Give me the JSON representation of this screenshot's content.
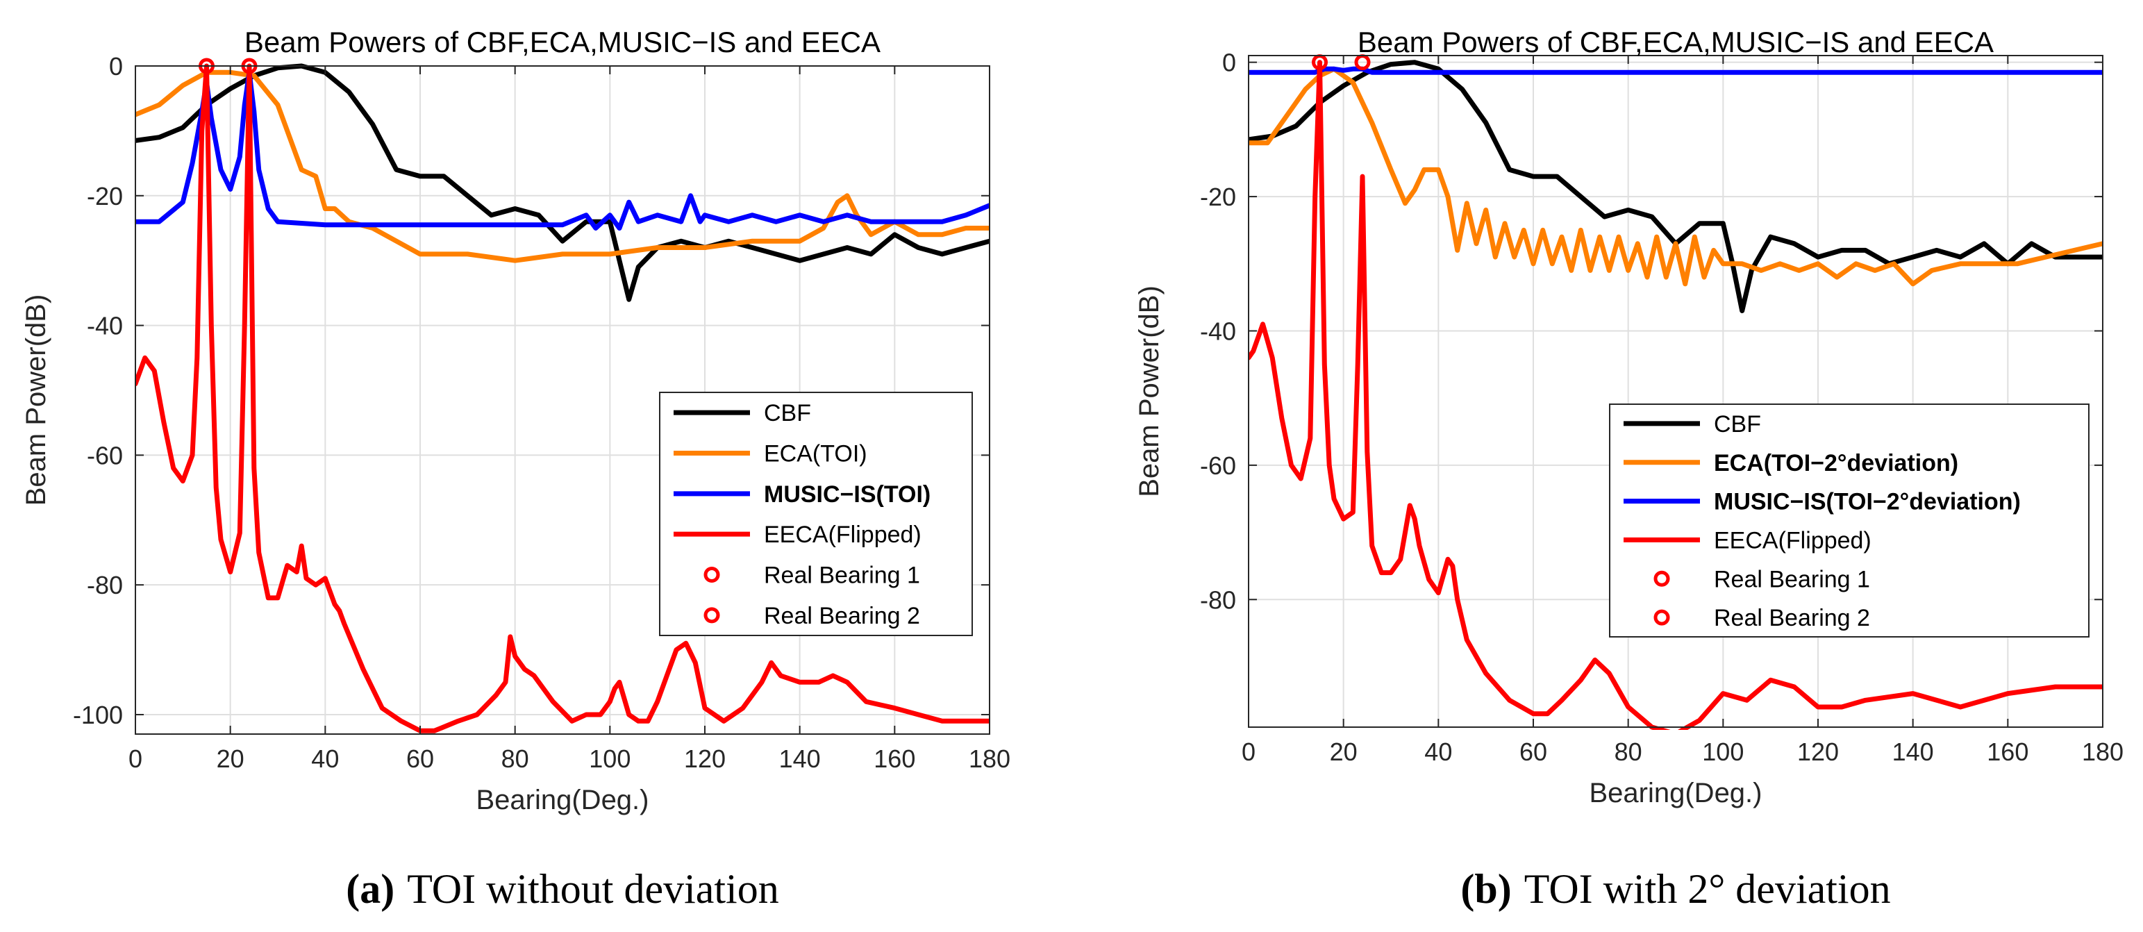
{
  "chart_data": [
    {
      "id": "a",
      "type": "line",
      "title": "Beam Powers of CBF,ECA,MUSIC−IS and EECA",
      "xlabel": "Bearing(Deg.)",
      "ylabel": "Beam Power(dB)",
      "xlim": [
        0,
        180
      ],
      "ylim": [
        -103,
        0
      ],
      "xticks": [
        0,
        20,
        40,
        60,
        80,
        100,
        120,
        140,
        160,
        180
      ],
      "yticks": [
        0,
        -20,
        -40,
        -60,
        -80,
        -100
      ],
      "grid": true,
      "legend_position": "lower-right",
      "caption": {
        "label": "(a)",
        "text": "TOI without deviation"
      },
      "series": [
        {
          "name": "CBF",
          "color": "#000000",
          "bold": false,
          "x": [
            0,
            5,
            10,
            15,
            20,
            25,
            30,
            35,
            40,
            45,
            50,
            55,
            60,
            65,
            70,
            75,
            80,
            85,
            90,
            95,
            100,
            102,
            104,
            106,
            110,
            115,
            120,
            125,
            130,
            135,
            140,
            145,
            150,
            155,
            160,
            165,
            170,
            175,
            180
          ],
          "y": [
            -11.5,
            -11,
            -9.5,
            -6,
            -3.5,
            -1.5,
            -0.3,
            0,
            -1,
            -4,
            -9,
            -16,
            -17,
            -17,
            -20,
            -23,
            -22,
            -23,
            -27,
            -24,
            -24,
            -30,
            -36,
            -31,
            -28,
            -27,
            -28,
            -27,
            -28,
            -29,
            -30,
            -29,
            -28,
            -29,
            -26,
            -28,
            -29,
            -28,
            -27
          ]
        },
        {
          "name": "ECA(TOI)",
          "color": "#ff8000",
          "bold": false,
          "x": [
            0,
            5,
            10,
            15,
            20,
            25,
            30,
            35,
            38,
            40,
            42,
            45,
            50,
            55,
            60,
            70,
            80,
            90,
            100,
            110,
            120,
            130,
            140,
            145,
            148,
            150,
            152,
            155,
            160,
            165,
            170,
            175,
            180
          ],
          "y": [
            -7.5,
            -6,
            -3,
            -1,
            -1,
            -1.5,
            -6,
            -16,
            -17,
            -22,
            -22,
            -24,
            -25,
            -27,
            -29,
            -29,
            -30,
            -29,
            -29,
            -28,
            -28,
            -27,
            -27,
            -25,
            -21,
            -20,
            -23,
            -26,
            -24,
            -26,
            -26,
            -25,
            -25
          ]
        },
        {
          "name": "MUSIC−IS(TOI)",
          "color": "#0000ff",
          "bold": true,
          "x": [
            0,
            5,
            10,
            12,
            14,
            15,
            16,
            18,
            20,
            22,
            23,
            24,
            25,
            26,
            28,
            30,
            40,
            50,
            60,
            70,
            80,
            90,
            95,
            97,
            100,
            102,
            104,
            106,
            110,
            115,
            117,
            119,
            120,
            125,
            130,
            135,
            140,
            145,
            150,
            155,
            160,
            165,
            170,
            175,
            180
          ],
          "y": [
            -24,
            -24,
            -21,
            -15,
            -7,
            -2.5,
            -8,
            -16,
            -19,
            -14,
            -6,
            -1,
            -7,
            -16,
            -22,
            -24,
            -24.5,
            -24.5,
            -24.5,
            -24.5,
            -24.5,
            -24.5,
            -23,
            -25,
            -23,
            -25,
            -21,
            -24,
            -23,
            -24,
            -20,
            -24,
            -23,
            -24,
            -23,
            -24,
            -23,
            -24,
            -23,
            -24,
            -24,
            -24,
            -24,
            -23,
            -21.5
          ]
        },
        {
          "name": "EECA(Flipped)",
          "color": "#ff0000",
          "bold": false,
          "x": [
            0,
            2,
            4,
            6,
            8,
            10,
            12,
            13,
            14,
            15,
            16,
            17,
            18,
            20,
            22,
            23,
            24,
            25,
            26,
            28,
            30,
            32,
            34,
            35,
            36,
            38,
            40,
            42,
            43,
            44,
            48,
            52,
            56,
            60,
            63,
            68,
            72,
            76,
            78,
            79,
            80,
            82,
            84,
            88,
            92,
            95,
            98,
            100,
            101,
            102,
            104,
            106,
            108,
            110,
            112,
            114,
            116,
            118,
            120,
            124,
            128,
            132,
            134,
            136,
            140,
            144,
            147,
            150,
            154,
            160,
            165,
            170,
            175,
            180
          ],
          "y": [
            -49,
            -45,
            -47,
            -55,
            -62,
            -64,
            -60,
            -45,
            -10,
            0,
            -40,
            -65,
            -73,
            -78,
            -72,
            -40,
            0,
            -62,
            -75,
            -82,
            -82,
            -77,
            -78,
            -74,
            -79,
            -80,
            -79,
            -83,
            -84,
            -86,
            -93,
            -99,
            -101,
            -102.5,
            -102.5,
            -101,
            -100,
            -97,
            -95,
            -88,
            -91,
            -93,
            -94,
            -98,
            -101,
            -100,
            -100,
            -98,
            -96,
            -95,
            -100,
            -101,
            -101,
            -98,
            -94,
            -90,
            -89,
            -92,
            -99,
            -101,
            -99,
            -95,
            -92,
            -94,
            -95,
            -95,
            -94,
            -95,
            -98,
            -99,
            -100,
            -101,
            -101,
            -101
          ]
        },
        {
          "name": "Real Bearing 1",
          "color": "#ff0000",
          "marker": "circle",
          "x": [
            15
          ],
          "y": [
            0
          ]
        },
        {
          "name": "Real Bearing 2",
          "color": "#ff0000",
          "marker": "circle",
          "x": [
            24
          ],
          "y": [
            0
          ]
        }
      ]
    },
    {
      "id": "b",
      "type": "line",
      "title": "Beam Powers of CBF,ECA,MUSIC−IS and EECA",
      "xlabel": "Bearing(Deg.)",
      "ylabel": "Beam Power(dB)",
      "xlim": [
        0,
        180
      ],
      "ylim": [
        -99,
        1
      ],
      "xticks": [
        0,
        20,
        40,
        60,
        80,
        100,
        120,
        140,
        160,
        180
      ],
      "yticks": [
        0,
        -20,
        -40,
        -60,
        -80
      ],
      "grid": true,
      "legend_position": "center-right",
      "caption": {
        "label": "(b)",
        "text": "TOI with 2° deviation"
      },
      "series": [
        {
          "name": "CBF",
          "color": "#000000",
          "bold": false,
          "x": [
            0,
            5,
            10,
            15,
            20,
            25,
            30,
            35,
            40,
            45,
            50,
            55,
            60,
            65,
            70,
            75,
            80,
            85,
            90,
            95,
            100,
            102,
            104,
            106,
            110,
            115,
            120,
            125,
            130,
            135,
            140,
            145,
            150,
            155,
            160,
            165,
            170,
            175,
            180
          ],
          "y": [
            -11.5,
            -11,
            -9.5,
            -6,
            -3.5,
            -1.5,
            -0.3,
            0,
            -1,
            -4,
            -9,
            -16,
            -17,
            -17,
            -20,
            -23,
            -22,
            -23,
            -27,
            -24,
            -24,
            -30,
            -37,
            -31,
            -26,
            -27,
            -29,
            -28,
            -28,
            -30,
            -29,
            -28,
            -29,
            -27,
            -30,
            -27,
            -29,
            -29,
            -29
          ]
        },
        {
          "name": "ECA(TOI−2°deviation)",
          "color": "#ff8000",
          "bold": true,
          "x": [
            0,
            4,
            8,
            12,
            15,
            18,
            22,
            26,
            30,
            33,
            35,
            37,
            40,
            42,
            44,
            46,
            48,
            50,
            52,
            54,
            56,
            58,
            60,
            62,
            64,
            66,
            68,
            70,
            72,
            74,
            76,
            78,
            80,
            82,
            84,
            86,
            88,
            90,
            92,
            94,
            96,
            98,
            100,
            104,
            108,
            112,
            116,
            120,
            124,
            128,
            132,
            136,
            140,
            144,
            150,
            156,
            162,
            168,
            174,
            180
          ],
          "y": [
            -12,
            -12,
            -8,
            -4,
            -2,
            -1,
            -3,
            -9,
            -16,
            -21,
            -19,
            -16,
            -16,
            -20,
            -28,
            -21,
            -27,
            -22,
            -29,
            -24,
            -29,
            -25,
            -30,
            -25,
            -30,
            -26,
            -31,
            -25,
            -31,
            -26,
            -31,
            -26,
            -31,
            -27,
            -32,
            -26,
            -32,
            -27,
            -33,
            -26,
            -32,
            -28,
            -30,
            -30,
            -31,
            -30,
            -31,
            -30,
            -32,
            -30,
            -31,
            -30,
            -33,
            -31,
            -30,
            -30,
            -30,
            -29,
            -28,
            -27
          ]
        },
        {
          "name": "MUSIC−IS(TOI−2°deviation)",
          "color": "#0000ff",
          "bold": true,
          "x": [
            0,
            10,
            14,
            16,
            18,
            20,
            22,
            24,
            26,
            30,
            40,
            60,
            80,
            100,
            120,
            140,
            160,
            180
          ],
          "y": [
            -1.5,
            -1.5,
            -1.5,
            -1,
            -1,
            -1.2,
            -1,
            -1,
            -1.5,
            -1.5,
            -1.5,
            -1.5,
            -1.5,
            -1.5,
            -1.5,
            -1.5,
            -1.5,
            -1.5
          ]
        },
        {
          "name": "EECA(Flipped)",
          "color": "#ff0000",
          "bold": false,
          "x": [
            0,
            1,
            3,
            5,
            7,
            9,
            11,
            13,
            14,
            15,
            16,
            17,
            18,
            20,
            22,
            23,
            24,
            25,
            26,
            28,
            30,
            32,
            34,
            35,
            36,
            38,
            40,
            42,
            43,
            44,
            46,
            50,
            55,
            60,
            63,
            66,
            70,
            73,
            76,
            80,
            85,
            90,
            95,
            100,
            105,
            110,
            115,
            120,
            125,
            130,
            140,
            150,
            160,
            170,
            180
          ],
          "y": [
            -44,
            -43,
            -39,
            -44,
            -53,
            -60,
            -62,
            -56,
            -20,
            0,
            -45,
            -60,
            -65,
            -68,
            -67,
            -45,
            -17,
            -58,
            -72,
            -76,
            -76,
            -74,
            -66,
            -68,
            -72,
            -77,
            -79,
            -74,
            -75,
            -80,
            -86,
            -91,
            -95,
            -97,
            -97,
            -95,
            -92,
            -89,
            -91,
            -96,
            -99,
            -100,
            -98,
            -94,
            -95,
            -92,
            -93,
            -96,
            -96,
            -95,
            -94,
            -96,
            -94,
            -93,
            -93
          ]
        },
        {
          "name": "Real Bearing 1",
          "color": "#ff0000",
          "marker": "circle",
          "x": [
            15
          ],
          "y": [
            0
          ]
        },
        {
          "name": "Real Bearing 2",
          "color": "#ff0000",
          "marker": "circle",
          "x": [
            24
          ],
          "y": [
            0
          ]
        }
      ]
    }
  ]
}
